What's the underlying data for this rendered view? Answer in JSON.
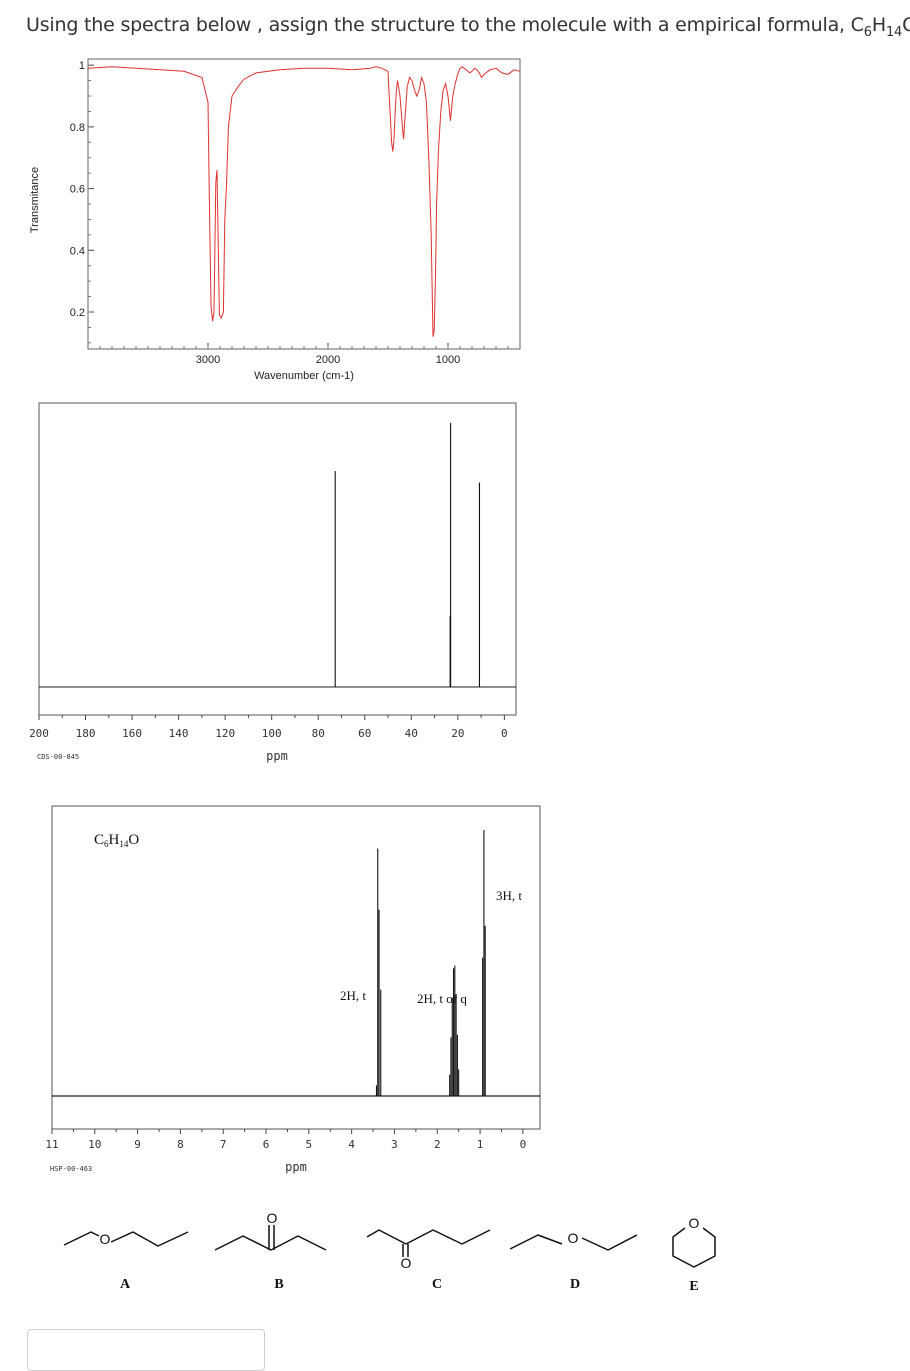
{
  "question": {
    "text_before": "Using the spectra below , assign the structure to the molecule with a empirical formula, C",
    "sub1": "6",
    "mid": "H",
    "sub2": "14",
    "text_after": "O."
  },
  "chart_data": [
    {
      "type": "line",
      "name": "IR spectrum",
      "xlabel": "Wavenumber (cm-1)",
      "ylabel": "Transmitance",
      "x_ticks": [
        "3000",
        "2000",
        "1000"
      ],
      "y_ticks": [
        "1",
        "0.8",
        "0.6",
        "0.4",
        "0.2"
      ],
      "xlim": [
        4000,
        400
      ],
      "ylim": [
        0.08,
        1.02
      ],
      "x": [
        4000,
        3800,
        3600,
        3400,
        3200,
        3050,
        3000,
        2990,
        2975,
        2962,
        2950,
        2935,
        2925,
        2905,
        2890,
        2872,
        2860,
        2845,
        2830,
        2800,
        2750,
        2700,
        2600,
        2400,
        2200,
        2000,
        1800,
        1650,
        1600,
        1550,
        1500,
        1490,
        1480,
        1470,
        1460,
        1450,
        1440,
        1430,
        1420,
        1400,
        1380,
        1370,
        1360,
        1340,
        1320,
        1300,
        1280,
        1260,
        1240,
        1220,
        1200,
        1180,
        1160,
        1140,
        1125,
        1115,
        1105,
        1095,
        1080,
        1060,
        1040,
        1020,
        1000,
        980,
        960,
        940,
        920,
        900,
        880,
        850,
        820,
        800,
        780,
        760,
        740,
        720,
        700,
        650,
        600,
        550,
        500,
        450,
        400
      ],
      "y": [
        0.99,
        0.995,
        0.99,
        0.985,
        0.98,
        0.96,
        0.88,
        0.6,
        0.22,
        0.17,
        0.2,
        0.62,
        0.66,
        0.19,
        0.18,
        0.2,
        0.5,
        0.62,
        0.8,
        0.9,
        0.93,
        0.955,
        0.975,
        0.985,
        0.99,
        0.99,
        0.985,
        0.99,
        0.995,
        0.99,
        0.98,
        0.9,
        0.83,
        0.75,
        0.72,
        0.76,
        0.85,
        0.92,
        0.95,
        0.9,
        0.8,
        0.76,
        0.82,
        0.93,
        0.96,
        0.95,
        0.92,
        0.9,
        0.92,
        0.96,
        0.94,
        0.88,
        0.7,
        0.45,
        0.12,
        0.14,
        0.3,
        0.55,
        0.72,
        0.85,
        0.92,
        0.94,
        0.9,
        0.82,
        0.9,
        0.94,
        0.97,
        0.99,
        0.995,
        0.985,
        0.975,
        0.98,
        0.99,
        0.985,
        0.975,
        0.96,
        0.97,
        0.985,
        0.99,
        0.975,
        0.97,
        0.985,
        0.98
      ],
      "color": "#e03030"
    },
    {
      "type": "line",
      "name": "13C NMR spectrum",
      "xlabel": "ppm",
      "x_ticks": [
        "200",
        "180",
        "160",
        "140",
        "120",
        "100",
        "80",
        "60",
        "40",
        "20",
        "0"
      ],
      "xlim": [
        200,
        -5
      ],
      "code": "CDS-00-845",
      "peaks": [
        {
          "ppm": 72.7,
          "height": 0.76
        },
        {
          "ppm": 23.1,
          "height": 0.93
        },
        {
          "ppm": 23.3,
          "height": 0.25
        },
        {
          "ppm": 10.7,
          "height": 0.72
        }
      ]
    },
    {
      "type": "line",
      "name": "1H NMR spectrum",
      "xlabel": "ppm",
      "x_ticks": [
        "11",
        "10",
        "9",
        "8",
        "7",
        "6",
        "5",
        "4",
        "3",
        "2",
        "1",
        "0"
      ],
      "xlim": [
        11,
        -0.4
      ],
      "code": "HSP-00-463",
      "formula": {
        "c": "C",
        "c_n": "6",
        "h": "H",
        "h_n": "14",
        "o": "O"
      },
      "annotations": [
        "2H, t",
        "2H, t of q",
        "3H, t"
      ],
      "peaks": [
        {
          "ppm": 3.42,
          "height": 0.04
        },
        {
          "ppm": 3.39,
          "height": 0.93
        },
        {
          "ppm": 3.36,
          "height": 0.7
        },
        {
          "ppm": 3.32,
          "height": 0.4
        },
        {
          "ppm": 1.71,
          "height": 0.08
        },
        {
          "ppm": 1.68,
          "height": 0.22
        },
        {
          "ppm": 1.65,
          "height": 0.37
        },
        {
          "ppm": 1.62,
          "height": 0.48
        },
        {
          "ppm": 1.59,
          "height": 0.49
        },
        {
          "ppm": 1.56,
          "height": 0.38
        },
        {
          "ppm": 1.53,
          "height": 0.23
        },
        {
          "ppm": 1.5,
          "height": 0.1
        },
        {
          "ppm": 0.94,
          "height": 0.52
        },
        {
          "ppm": 0.91,
          "height": 1.0
        },
        {
          "ppm": 0.88,
          "height": 0.64
        }
      ]
    }
  ],
  "choices": [
    {
      "label": "A"
    },
    {
      "label": "B",
      "atom": "O"
    },
    {
      "label": "C",
      "atom": "O"
    },
    {
      "label": "D",
      "atom": "O"
    },
    {
      "label": "E",
      "atom": "O"
    }
  ],
  "choice_a_atom": "O"
}
